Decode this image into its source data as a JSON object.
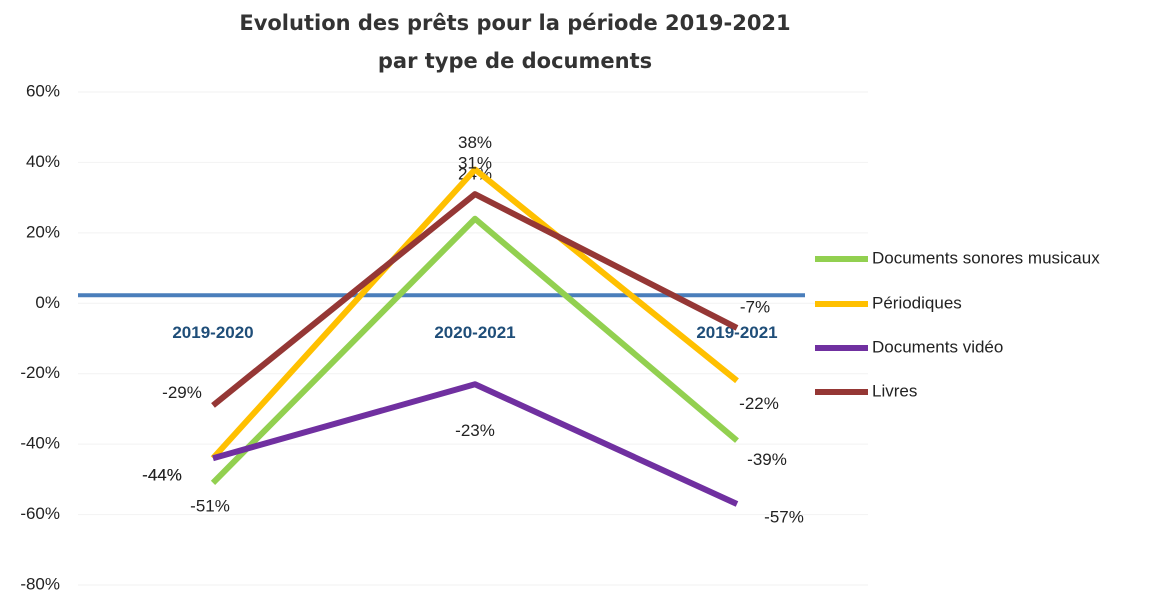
{
  "chart_data": {
    "type": "line",
    "title": "Evolution des prêts pour la période 2019-2021",
    "subtitle": "par type de documents",
    "categories": [
      "2019-2020",
      "2020-2021",
      "2019-2021"
    ],
    "series": [
      {
        "name": "Documents sonores musicaux",
        "color": "#92d050",
        "values": [
          -51,
          24,
          -39
        ],
        "value_labels": [
          "-51%",
          "24%",
          "-39%"
        ]
      },
      {
        "name": "Périodiques",
        "color": "#ffc000",
        "values": [
          -44,
          38,
          -22
        ],
        "value_labels": [
          "-44%",
          "38%",
          "-22%"
        ]
      },
      {
        "name": "Documents vidéo",
        "color": "#7030a0",
        "values": [
          -44,
          -23,
          -57
        ],
        "value_labels": [
          "-44%",
          "-23%",
          "-57%"
        ]
      },
      {
        "name": "Livres",
        "color": "#953735",
        "values": [
          -29,
          31,
          -7
        ],
        "value_labels": [
          "-29%",
          "31%",
          "-7%"
        ]
      }
    ],
    "ylim": [
      -80,
      60
    ],
    "yticks": [
      {
        "value": -80,
        "label": "-80%"
      },
      {
        "value": -60,
        "label": "-60%"
      },
      {
        "value": -40,
        "label": "-40%"
      },
      {
        "value": -20,
        "label": "-20%"
      },
      {
        "value": 0,
        "label": "0%"
      },
      {
        "value": 20,
        "label": "20%"
      },
      {
        "value": 40,
        "label": "40%"
      },
      {
        "value": 60,
        "label": "60%"
      }
    ],
    "grid": true,
    "legend": "right"
  }
}
